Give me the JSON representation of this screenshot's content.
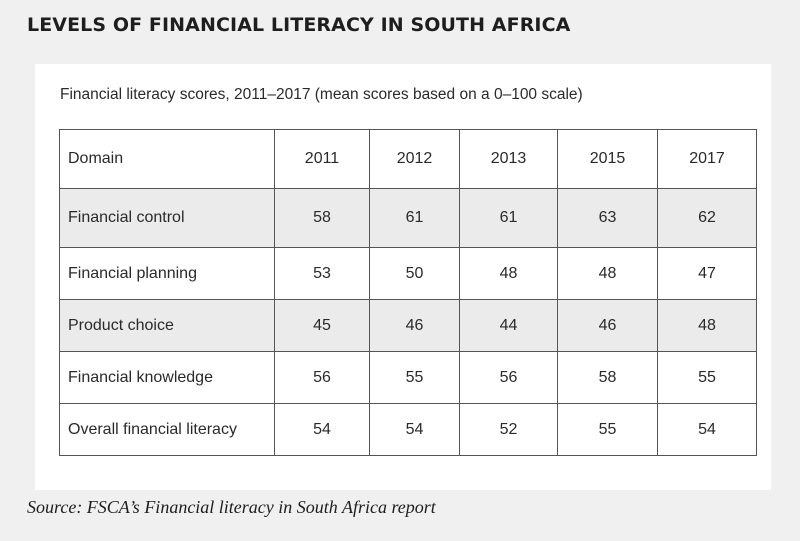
{
  "page": {
    "title": "LEVELS OF FINANCIAL LITERACY IN SOUTH AFRICA",
    "source": "Source: FSCA’s Financial literacy in South Africa report"
  },
  "chart_data": {
    "type": "table",
    "title": "Financial literacy scores, 2011–2017 (mean scores based on a 0–100 scale)",
    "columns": [
      "Domain",
      "2011",
      "2012",
      "2013",
      "2015",
      "2017"
    ],
    "rows": [
      {
        "domain": "Financial control",
        "values": [
          58,
          61,
          61,
          63,
          62
        ]
      },
      {
        "domain": "Financial planning",
        "values": [
          53,
          50,
          48,
          48,
          47
        ]
      },
      {
        "domain": "Product choice",
        "values": [
          45,
          46,
          44,
          46,
          48
        ]
      },
      {
        "domain": "Financial knowledge",
        "values": [
          56,
          55,
          56,
          58,
          55
        ]
      },
      {
        "domain": "Overall financial literacy",
        "values": [
          54,
          54,
          52,
          55,
          54
        ]
      }
    ],
    "row_shading": "alternating-grey",
    "colors": {
      "page_background": "#f0f0f0",
      "panel_background": "#ffffff",
      "shaded_row": "#ebebeb",
      "border": "#555555",
      "text": "#2a2a2a"
    }
  }
}
